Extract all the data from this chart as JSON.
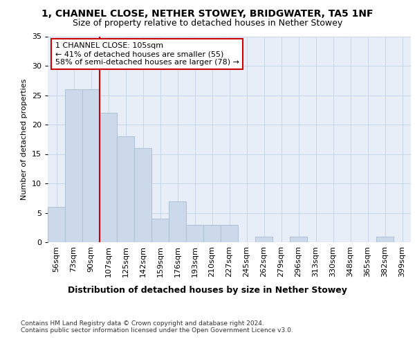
{
  "title1": "1, CHANNEL CLOSE, NETHER STOWEY, BRIDGWATER, TA5 1NF",
  "title2": "Size of property relative to detached houses in Nether Stowey",
  "xlabel": "Distribution of detached houses by size in Nether Stowey",
  "ylabel": "Number of detached properties",
  "categories": [
    "56sqm",
    "73sqm",
    "90sqm",
    "107sqm",
    "125sqm",
    "142sqm",
    "159sqm",
    "176sqm",
    "193sqm",
    "210sqm",
    "227sqm",
    "245sqm",
    "262sqm",
    "279sqm",
    "296sqm",
    "313sqm",
    "330sqm",
    "348sqm",
    "365sqm",
    "382sqm",
    "399sqm"
  ],
  "values": [
    6,
    26,
    26,
    22,
    18,
    16,
    4,
    7,
    3,
    3,
    3,
    0,
    1,
    0,
    1,
    0,
    0,
    0,
    0,
    1,
    0
  ],
  "bar_color": "#ccd9ea",
  "bar_edge_color": "#b0c4d8",
  "vline_color": "#cc0000",
  "vline_x_index": 3,
  "annotation_line1": "1 CHANNEL CLOSE: 105sqm",
  "annotation_line2": "← 41% of detached houses are smaller (55)",
  "annotation_line3": "58% of semi-detached houses are larger (78) →",
  "annotation_box_facecolor": "#ffffff",
  "annotation_box_edgecolor": "#cc0000",
  "ylim": [
    0,
    35
  ],
  "yticks": [
    0,
    5,
    10,
    15,
    20,
    25,
    30,
    35
  ],
  "grid_color": "#c8d4e8",
  "bg_color": "#e8eef8",
  "footnote": "Contains HM Land Registry data © Crown copyright and database right 2024.\nContains public sector information licensed under the Open Government Licence v3.0.",
  "title1_fontsize": 10,
  "title2_fontsize": 9,
  "xlabel_fontsize": 9,
  "ylabel_fontsize": 8,
  "tick_fontsize": 8,
  "annot_fontsize": 8,
  "footnote_fontsize": 6.5
}
